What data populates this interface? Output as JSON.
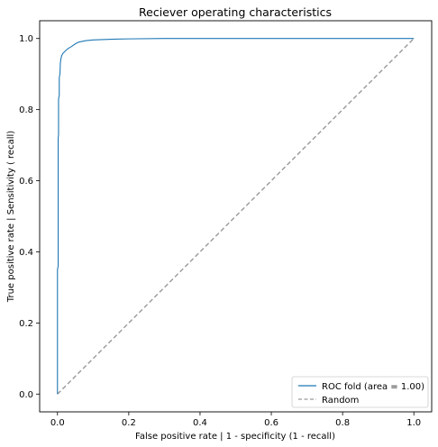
{
  "chart_data": {
    "type": "line",
    "title": "Reciever operating characteristics",
    "xlabel": "False positive rate | 1 - specificity (1 -  recall)",
    "ylabel": "True positive rate | Sensitivity ( recall)",
    "xlim": [
      -0.05,
      1.05
    ],
    "ylim": [
      -0.05,
      1.05
    ],
    "xticks": [
      0.0,
      0.2,
      0.4,
      0.6,
      0.8,
      1.0
    ],
    "yticks": [
      0.0,
      0.2,
      0.4,
      0.6,
      0.8,
      1.0
    ],
    "xtick_labels": [
      "0.0",
      "0.2",
      "0.4",
      "0.6",
      "0.8",
      "1.0"
    ],
    "ytick_labels": [
      "0.0",
      "0.2",
      "0.4",
      "0.6",
      "0.8",
      "1.0"
    ],
    "grid": false,
    "legend_position": "bottom-right",
    "series": [
      {
        "name": "ROC fold (area = 1.00)",
        "color": "#1f77b4",
        "style": "solid",
        "x": [
          0.0,
          0.0,
          0.002,
          0.002,
          0.003,
          0.003,
          0.005,
          0.005,
          0.007,
          0.008,
          0.01,
          0.012,
          0.015,
          0.02,
          0.025,
          0.03,
          0.04,
          0.05,
          0.06,
          0.08,
          0.1,
          0.15,
          0.2,
          0.3,
          0.5,
          1.0
        ],
        "y": [
          0.0,
          0.35,
          0.36,
          0.72,
          0.73,
          0.83,
          0.84,
          0.89,
          0.9,
          0.93,
          0.945,
          0.952,
          0.958,
          0.963,
          0.968,
          0.972,
          0.978,
          0.985,
          0.99,
          0.994,
          0.996,
          0.998,
          0.999,
          1.0,
          1.0,
          1.0
        ]
      },
      {
        "name": "Random",
        "color": "#999999",
        "style": "dashed",
        "x": [
          0.0,
          1.0
        ],
        "y": [
          0.0,
          1.0
        ]
      }
    ]
  }
}
